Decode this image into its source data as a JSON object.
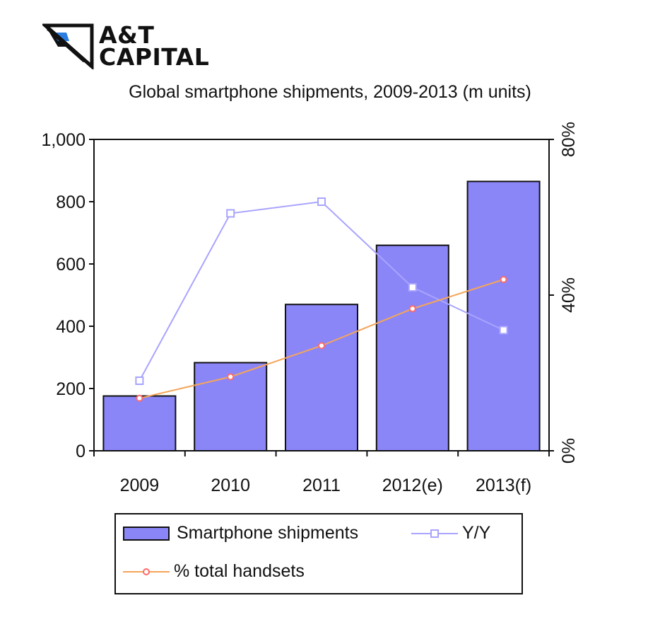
{
  "logo": {
    "line1": "A&T",
    "line2": "CAPITAL"
  },
  "colors": {
    "bar": "#8a86f8",
    "bar_border": "#111111",
    "yy": "#a9a4ff",
    "handsets": "#f5a55a",
    "handsets_marker": "#ff6a6a"
  },
  "chart_data": {
    "type": "bar",
    "title": "Global smartphone shipments, 2009-2013 (m units)",
    "categories": [
      "2009",
      "2010",
      "2011",
      "2012(e)",
      "2013(f)"
    ],
    "y_ticks": [
      "1,000",
      "800",
      "600",
      "400",
      "200",
      "0"
    ],
    "y2_ticks": [
      "80%",
      "40%",
      "0%"
    ],
    "ylim": [
      0,
      1000
    ],
    "y2lim": [
      0,
      80
    ],
    "series": [
      {
        "name": "Smartphone shipments",
        "type": "bar",
        "axis": "left",
        "values": [
          176,
          283,
          470,
          660,
          865
        ]
      },
      {
        "name": "Y/Y",
        "type": "line",
        "axis": "right",
        "marker": "square",
        "values": [
          18,
          61,
          64,
          42,
          31
        ]
      },
      {
        "name": "% total handsets",
        "type": "line",
        "axis": "right",
        "marker": "circle",
        "values": [
          13.5,
          19,
          27,
          36.5,
          44
        ]
      }
    ],
    "legend": {
      "position": "bottom"
    },
    "grid": false
  }
}
